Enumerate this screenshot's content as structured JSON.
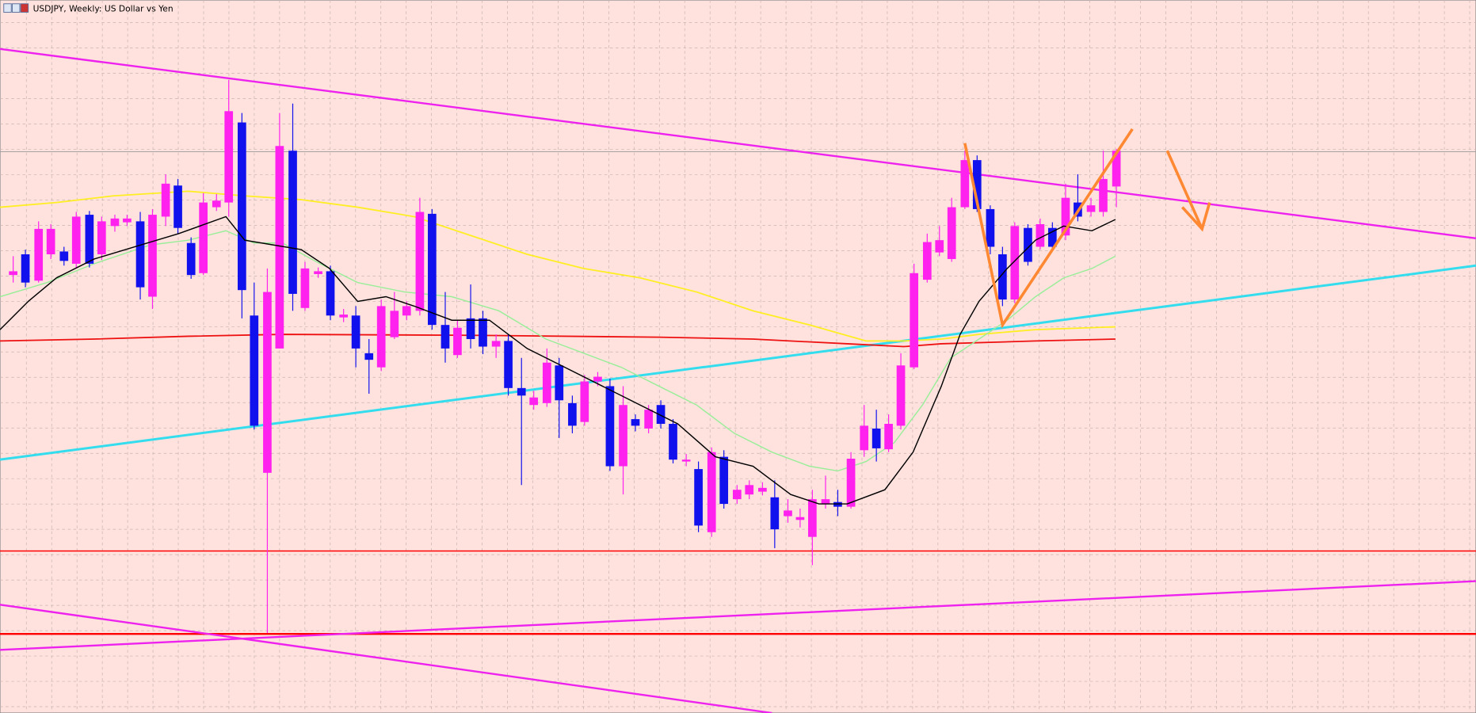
{
  "window": {
    "title": "USDJPY, Weekly:  US Dollar vs Yen"
  }
}
